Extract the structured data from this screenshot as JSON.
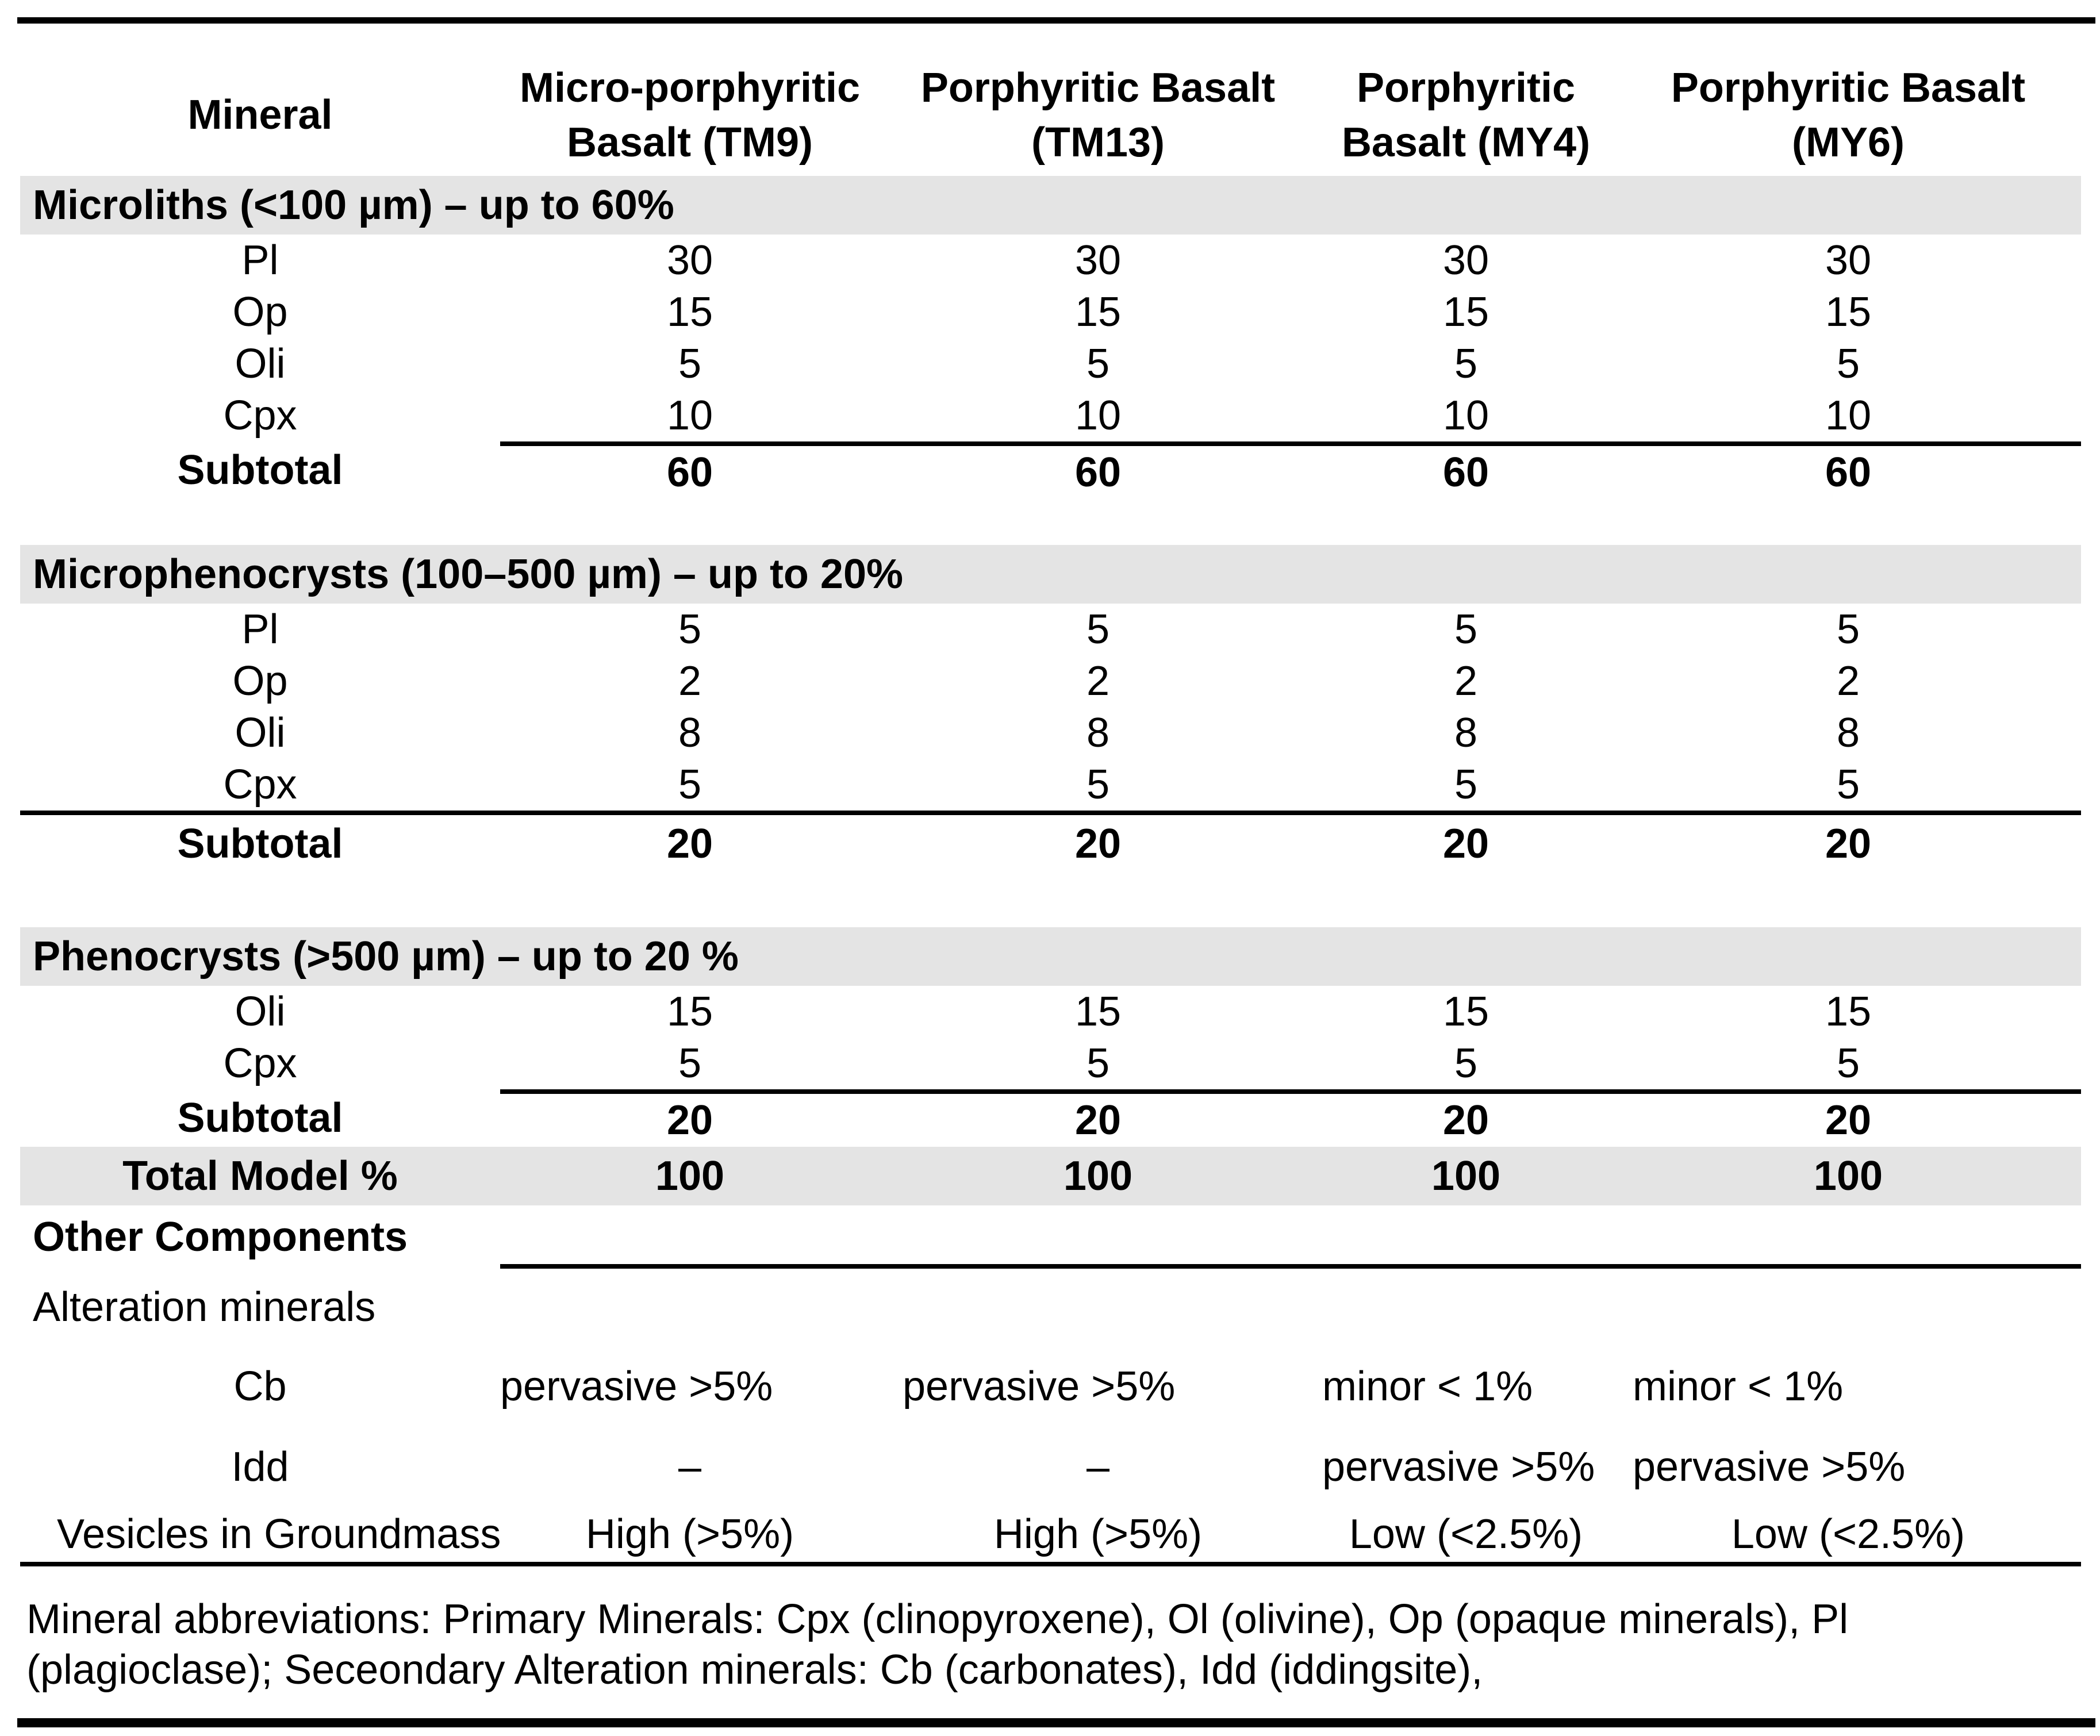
{
  "page": {
    "band_color": "#e4e4e4",
    "rule_color": "#000000",
    "background": "#ffffff"
  },
  "table": {
    "header": {
      "col0": "Mineral",
      "col1": "Micro-porphyritic Basalt (TM9)",
      "col2": "Porphyritic Basalt (TM13)",
      "col3": "Porphyritic Basalt (MY4)",
      "col4": "Porphyritic Basalt (MY6)"
    },
    "sections": [
      {
        "band": "Microliths (<100 µm) – up to 60%",
        "rows": [
          {
            "label": "Pl",
            "v1": "30",
            "v2": "30",
            "v3": "30",
            "v4": "30"
          },
          {
            "label": "Op",
            "v1": "15",
            "v2": "15",
            "v3": "15",
            "v4": "15"
          },
          {
            "label": "Oli",
            "v1": "5",
            "v2": "5",
            "v3": "5",
            "v4": "5"
          },
          {
            "label": "Cpx",
            "v1": "10",
            "v2": "10",
            "v3": "10",
            "v4": "10"
          }
        ],
        "subtotal": {
          "label": "Subtotal",
          "v1": "60",
          "v2": "60",
          "v3": "60",
          "v4": "60"
        }
      },
      {
        "band": "Microphenocrysts (100–500 µm) – up to 20%",
        "rows": [
          {
            "label": "Pl",
            "v1": "5",
            "v2": "5",
            "v3": "5",
            "v4": "5"
          },
          {
            "label": "Op",
            "v1": "2",
            "v2": "2",
            "v3": "2",
            "v4": "2"
          },
          {
            "label": "Oli",
            "v1": "8",
            "v2": "8",
            "v3": "8",
            "v4": "8"
          },
          {
            "label": "Cpx",
            "v1": "5",
            "v2": "5",
            "v3": "5",
            "v4": "5"
          }
        ],
        "subtotal": {
          "label": "Subtotal",
          "v1": "20",
          "v2": "20",
          "v3": "20",
          "v4": "20"
        }
      },
      {
        "band": "Phenocrysts (>500 µm) – up to 20 %",
        "rows": [
          {
            "label": "Oli",
            "v1": "15",
            "v2": "15",
            "v3": "15",
            "v4": "15"
          },
          {
            "label": "Cpx",
            "v1": "5",
            "v2": "5",
            "v3": "5",
            "v4": "5"
          }
        ],
        "subtotal": {
          "label": "Subtotal",
          "v1": "20",
          "v2": "20",
          "v3": "20",
          "v4": "20"
        }
      }
    ],
    "total": {
      "label": "Total Model %",
      "v1": "100",
      "v2": "100",
      "v3": "100",
      "v4": "100"
    },
    "other": {
      "heading": "Other Components",
      "subheading": "Alteration minerals",
      "cb": {
        "label": "Cb",
        "v1": "pervasive >5%",
        "v2": "pervasive >5%",
        "v3": "minor < 1%",
        "v4": "minor < 1%"
      },
      "idd": {
        "label": "Idd",
        "v1": "–",
        "v2": "–",
        "v3": "pervasive >5%",
        "v4": "pervasive >5%"
      },
      "vesicles": {
        "label": "Vesicles in Groundmass",
        "v1": "High (>5%)",
        "v2": "High (>5%)",
        "v3": "Low (<2.5%)",
        "v4": "Low (<2.5%)"
      }
    },
    "footnote": {
      "line1": "Mineral abbreviations: Primary Minerals:  Cpx (clinopyroxene),  Ol (olivine), Op (opaque minerals), Pl",
      "line2": "(plagioclase); Seceondary Alteration minerals: Cb (carbonates), Idd (iddingsite),"
    }
  }
}
